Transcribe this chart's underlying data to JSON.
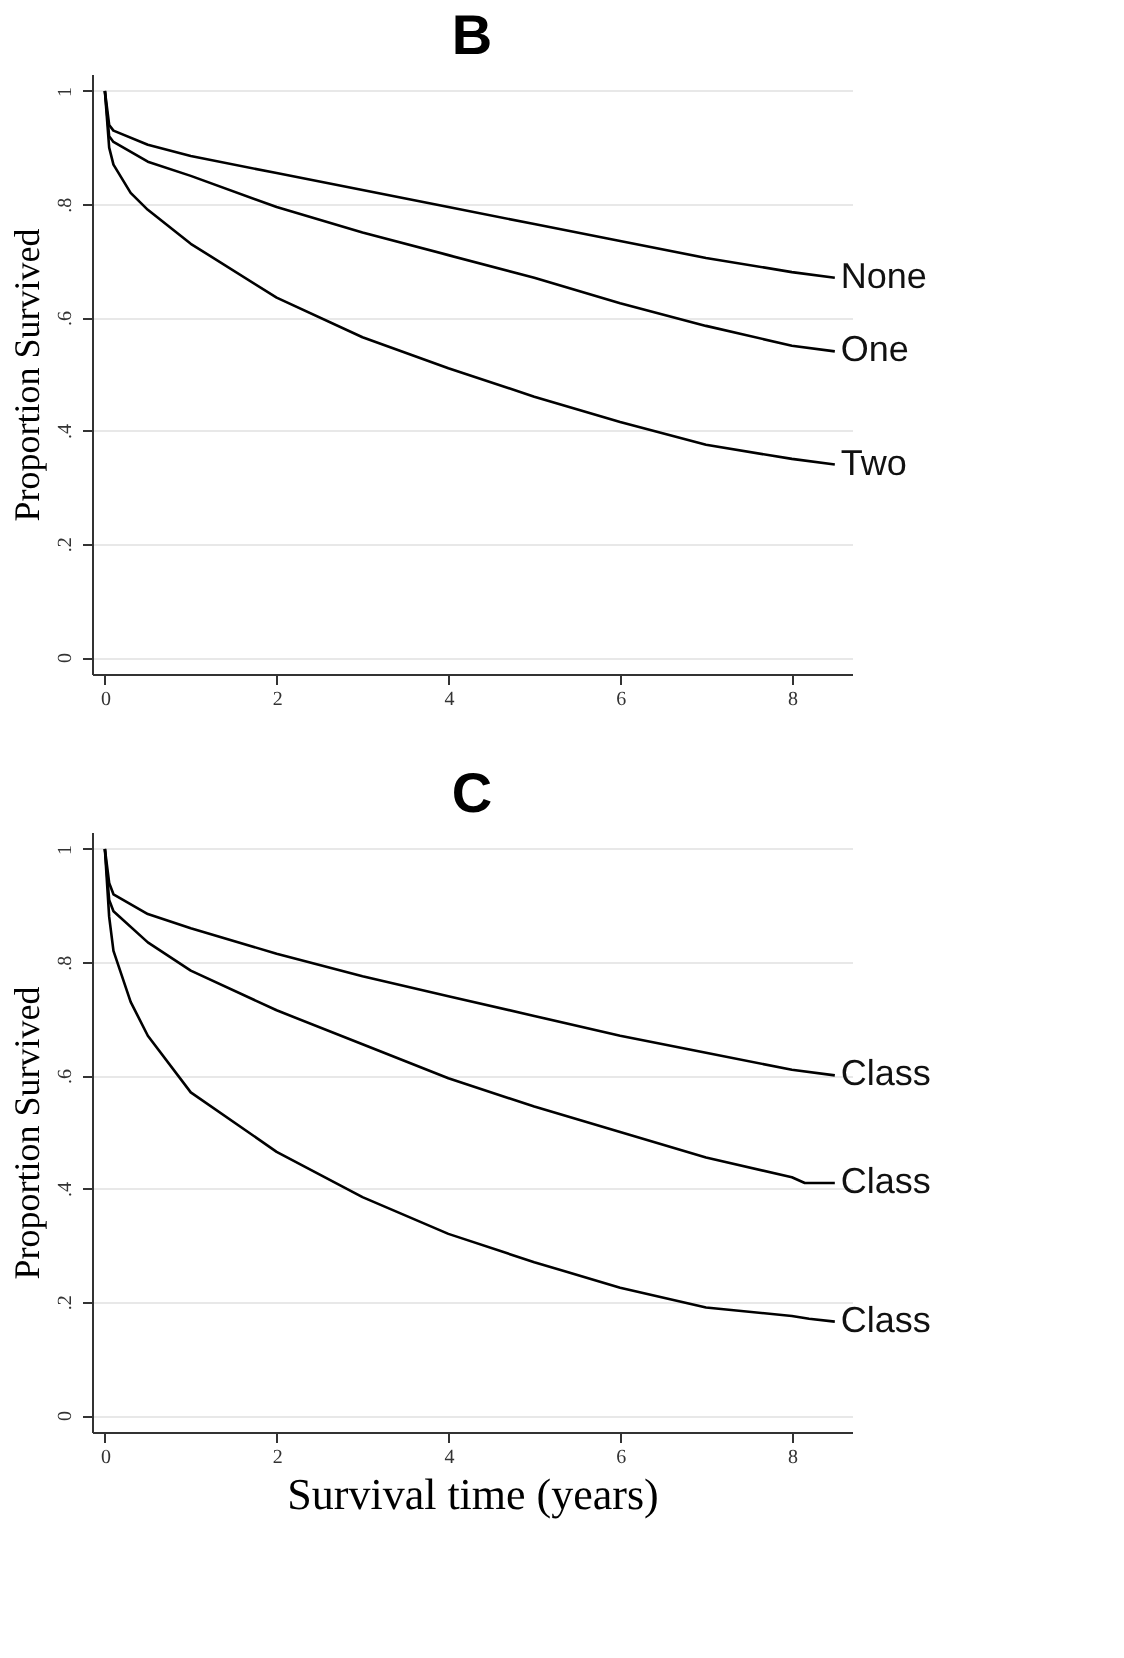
{
  "chart_data": [
    {
      "type": "line",
      "title": "B",
      "ylabel": "Proportion Survived",
      "xlim": [
        -0.15,
        8.7
      ],
      "ylim": [
        -0.03,
        1.03
      ],
      "xticks": [
        0,
        2,
        4,
        6,
        8
      ],
      "yticks": [
        {
          "value": 0,
          "label": "0"
        },
        {
          "value": 0.2,
          "label": ".2"
        },
        {
          "value": 0.4,
          "label": ".4"
        },
        {
          "value": 0.6,
          "label": ".6"
        },
        {
          "value": 0.8,
          "label": ".8"
        },
        {
          "value": 1,
          "label": "1"
        }
      ],
      "grid": "y",
      "legend": false,
      "line_style": "solid",
      "marker": "none",
      "series": [
        {
          "name": "None",
          "color": "#000000",
          "x": [
            0,
            0.05,
            0.1,
            0.5,
            1,
            2,
            3,
            4,
            5,
            6,
            7,
            8,
            8.5
          ],
          "values": [
            1,
            0.94,
            0.93,
            0.905,
            0.885,
            0.855,
            0.825,
            0.795,
            0.765,
            0.735,
            0.705,
            0.68,
            0.67
          ]
        },
        {
          "name": "One",
          "color": "#000000",
          "x": [
            0,
            0.05,
            0.1,
            0.5,
            1,
            2,
            3,
            4,
            5,
            6,
            7,
            8,
            8.5
          ],
          "values": [
            1,
            0.92,
            0.91,
            0.875,
            0.85,
            0.795,
            0.75,
            0.71,
            0.67,
            0.625,
            0.585,
            0.55,
            0.54
          ]
        },
        {
          "name": "Two",
          "color": "#000000",
          "x": [
            0,
            0.05,
            0.1,
            0.3,
            0.5,
            1,
            2,
            3,
            4,
            5,
            6,
            7,
            8,
            8.5
          ],
          "values": [
            1,
            0.9,
            0.87,
            0.82,
            0.79,
            0.73,
            0.635,
            0.565,
            0.51,
            0.46,
            0.415,
            0.375,
            0.35,
            0.34
          ]
        }
      ]
    },
    {
      "type": "line",
      "title": "C",
      "xlabel": "Survival time (years)",
      "ylabel": "Proportion Survived",
      "xlim": [
        -0.15,
        8.7
      ],
      "ylim": [
        -0.03,
        1.03
      ],
      "xticks": [
        0,
        2,
        4,
        6,
        8
      ],
      "yticks": [
        {
          "value": 0,
          "label": "0"
        },
        {
          "value": 0.2,
          "label": ".2"
        },
        {
          "value": 0.4,
          "label": ".4"
        },
        {
          "value": 0.6,
          "label": ".6"
        },
        {
          "value": 0.8,
          "label": ".8"
        },
        {
          "value": 1,
          "label": "1"
        }
      ],
      "grid": "y",
      "legend": false,
      "line_style": "solid",
      "marker": "none",
      "series": [
        {
          "name": "Class",
          "color": "#000000",
          "x": [
            0,
            0.05,
            0.1,
            0.5,
            1,
            2,
            3,
            4,
            5,
            6,
            7,
            8,
            8.5
          ],
          "values": [
            1,
            0.94,
            0.92,
            0.885,
            0.86,
            0.815,
            0.775,
            0.74,
            0.705,
            0.67,
            0.64,
            0.61,
            0.6
          ]
        },
        {
          "name": "Class",
          "color": "#000000",
          "x": [
            0,
            0.05,
            0.1,
            0.5,
            1,
            2,
            3,
            4,
            5,
            6,
            7,
            8,
            8.15,
            8.5
          ],
          "values": [
            1,
            0.91,
            0.89,
            0.835,
            0.785,
            0.715,
            0.655,
            0.595,
            0.545,
            0.5,
            0.455,
            0.42,
            0.41,
            0.41
          ]
        },
        {
          "name": "Class",
          "color": "#000000",
          "x": [
            0,
            0.05,
            0.1,
            0.3,
            0.5,
            1,
            2,
            3,
            4,
            5,
            6,
            7,
            8,
            8.2,
            8.5
          ],
          "values": [
            1,
            0.88,
            0.82,
            0.73,
            0.67,
            0.57,
            0.465,
            0.385,
            0.32,
            0.27,
            0.225,
            0.19,
            0.175,
            0.17,
            0.165
          ]
        }
      ]
    }
  ]
}
